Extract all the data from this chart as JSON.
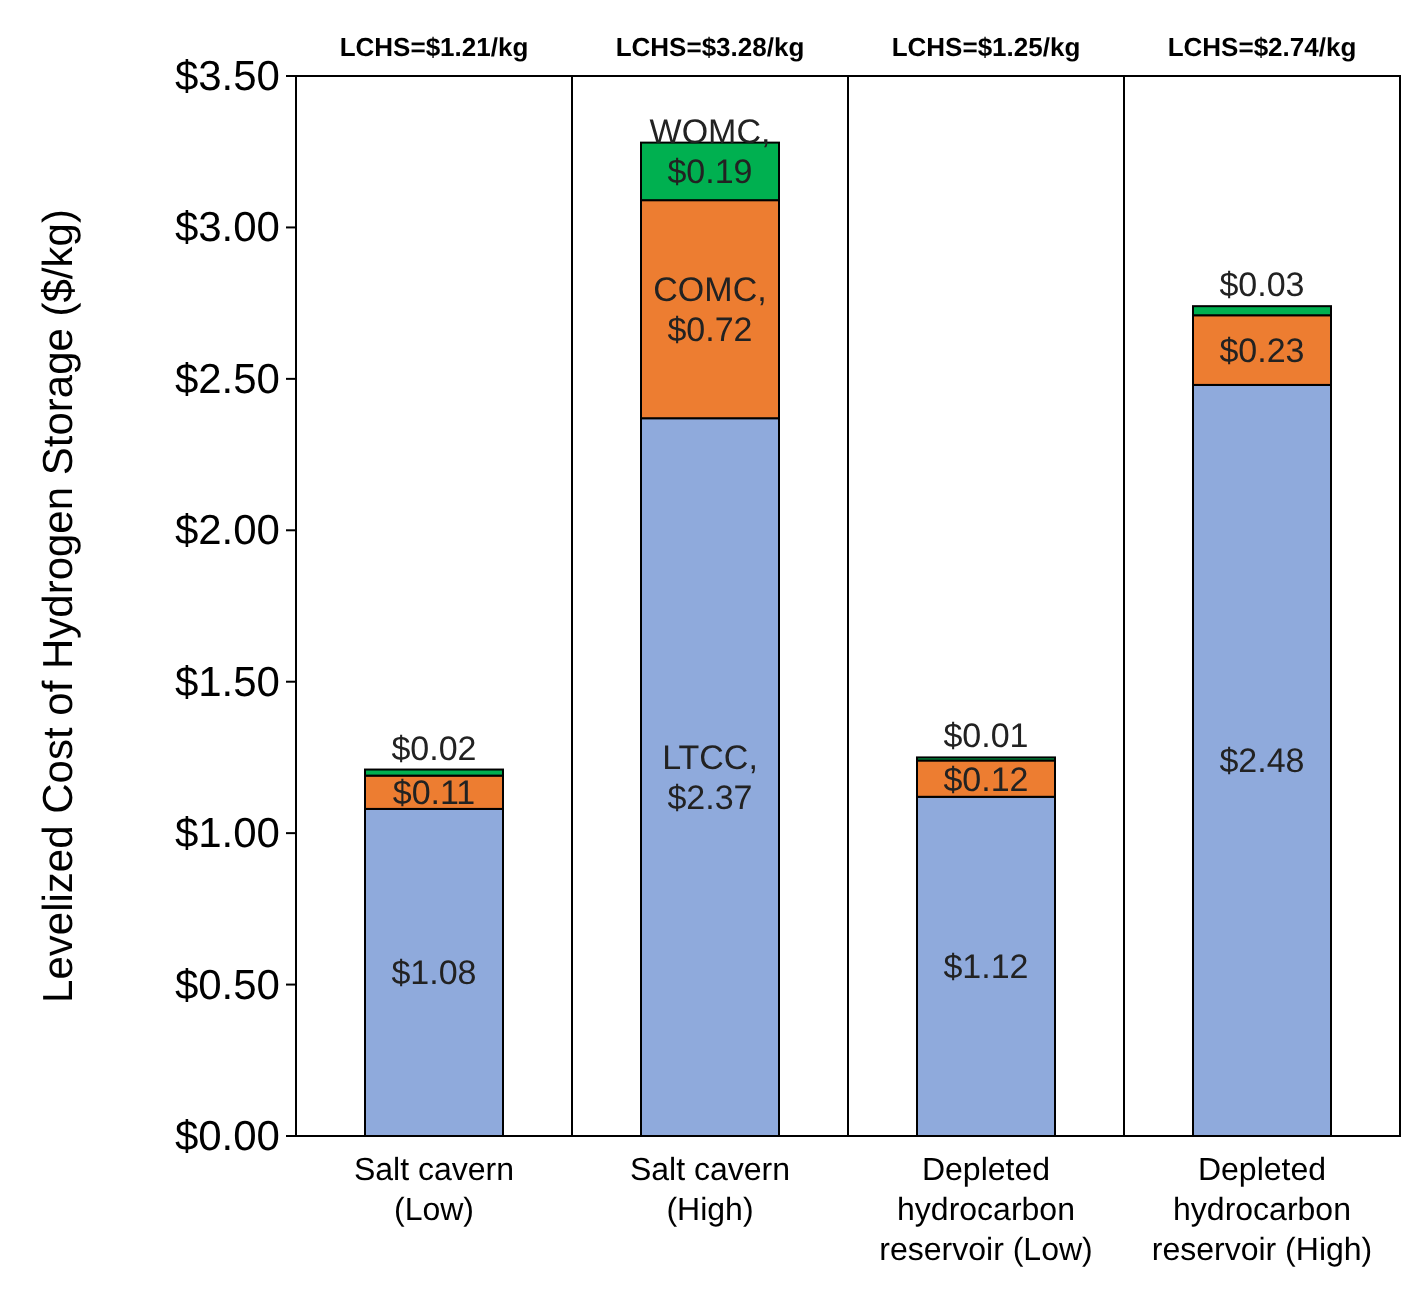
{
  "chart_data": {
    "type": "bar",
    "stacked": true,
    "ylabel": "Levelized Cost of Hydrogen Storage ($/kg)",
    "categories": [
      "Salt cavern (Low)",
      "Salt cavern (High)",
      "Depleted hydrocarbon reservoir (Low)",
      "Depleted hydrocarbon reservoir (High)"
    ],
    "series": [
      {
        "color": "#8faadc",
        "values": [
          1.08,
          2.37,
          1.12,
          2.48
        ],
        "value_labels": [
          "$1.08",
          "LTCC,\n$2.37",
          "$1.12",
          "$2.48"
        ]
      },
      {
        "color": "#ed7d31",
        "values": [
          0.11,
          0.72,
          0.12,
          0.23
        ],
        "value_labels": [
          "$0.11",
          "COMC,\n$0.72",
          "$0.12",
          "$0.23"
        ]
      },
      {
        "color": "#00b050",
        "values": [
          0.02,
          0.19,
          0.01,
          0.03
        ],
        "value_labels": [
          "$0.02",
          "WOMC,\n$0.19",
          "$0.01",
          "$0.03"
        ]
      }
    ],
    "annotations": [
      "LCHS=$1.21/kg",
      "LCHS=$3.28/kg",
      "LCHS=$1.25/kg",
      "LCHS=$2.74/kg"
    ],
    "ylim": [
      0,
      3.5
    ],
    "yticks": [
      {
        "value": 0,
        "label": "$0.00"
      },
      {
        "value": 0.5,
        "label": "$0.50"
      },
      {
        "value": 1,
        "label": "$1.00"
      },
      {
        "value": 1.5,
        "label": "$1.50"
      },
      {
        "value": 2,
        "label": "$2.00"
      },
      {
        "value": 2.5,
        "label": "$2.50"
      },
      {
        "value": 3,
        "label": "$3.00"
      },
      {
        "value": 3.5,
        "label": "$3.50"
      }
    ],
    "grid": false
  }
}
